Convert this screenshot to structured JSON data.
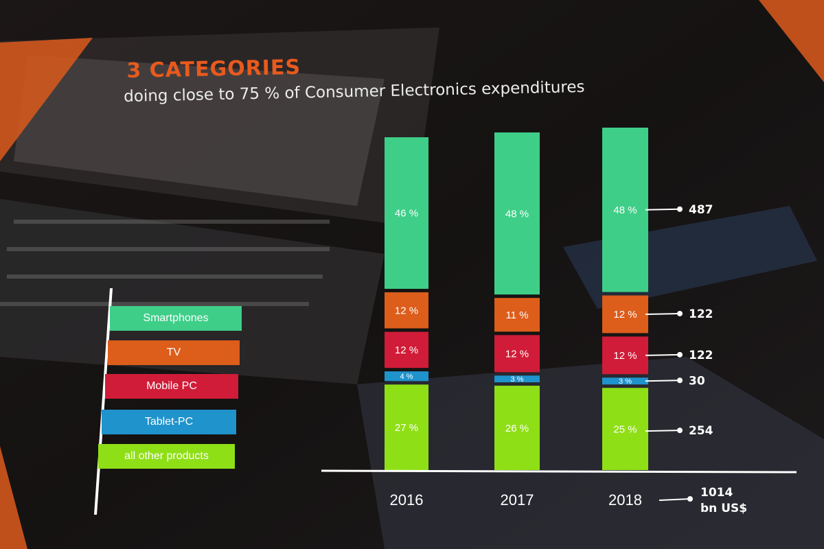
{
  "slide": {
    "headline": "3 CATEGORIES",
    "subheadline": "doing close to 75 % of Consumer Electronics expenditures"
  },
  "colors": {
    "Smartphones": "#3fce88",
    "TV": "#dd5d1b",
    "Mobile PC": "#d01c38",
    "Tablet-PC": "#1f93cc",
    "all other products": "#8fdf17",
    "accent": "#e85a1e"
  },
  "chart_data": {
    "type": "bar",
    "stacked": true,
    "title": "doing close to 75 % of Consumer Electronics expenditures",
    "categories": [
      "2016",
      "2017",
      "2018"
    ],
    "series": [
      {
        "name": "all other products",
        "values": [
          27,
          26,
          25
        ],
        "labels": [
          "27 %",
          "26 %",
          "25 %"
        ]
      },
      {
        "name": "Tablet-PC",
        "values": [
          4,
          3,
          3
        ],
        "labels": [
          "4 %",
          "3 %",
          "3 %"
        ]
      },
      {
        "name": "Mobile PC",
        "values": [
          12,
          12,
          12
        ],
        "labels": [
          "12 %",
          "12 %",
          "12 %"
        ]
      },
      {
        "name": "TV",
        "values": [
          12,
          11,
          12
        ],
        "labels": [
          "12 %",
          "11 %",
          "12 %"
        ]
      },
      {
        "name": "Smartphones",
        "values": [
          46,
          48,
          48
        ],
        "labels": [
          "46 %",
          "48 %",
          "48 %"
        ]
      }
    ],
    "annotations_2018": [
      {
        "series": "Smartphones",
        "value": "487"
      },
      {
        "series": "TV",
        "value": "122"
      },
      {
        "series": "Mobile PC",
        "value": "122"
      },
      {
        "series": "Tablet-PC",
        "value": "30"
      },
      {
        "series": "all other products",
        "value": "254"
      }
    ],
    "total_2018": {
      "value": "1014",
      "unit": "bn US$"
    },
    "legend": [
      "Smartphones",
      "TV",
      "Mobile PC",
      "Tablet-PC",
      "all other products"
    ],
    "xlabel": "",
    "ylabel": "",
    "ylim": [
      0,
      100
    ],
    "grid": false,
    "legend_position": "left"
  }
}
